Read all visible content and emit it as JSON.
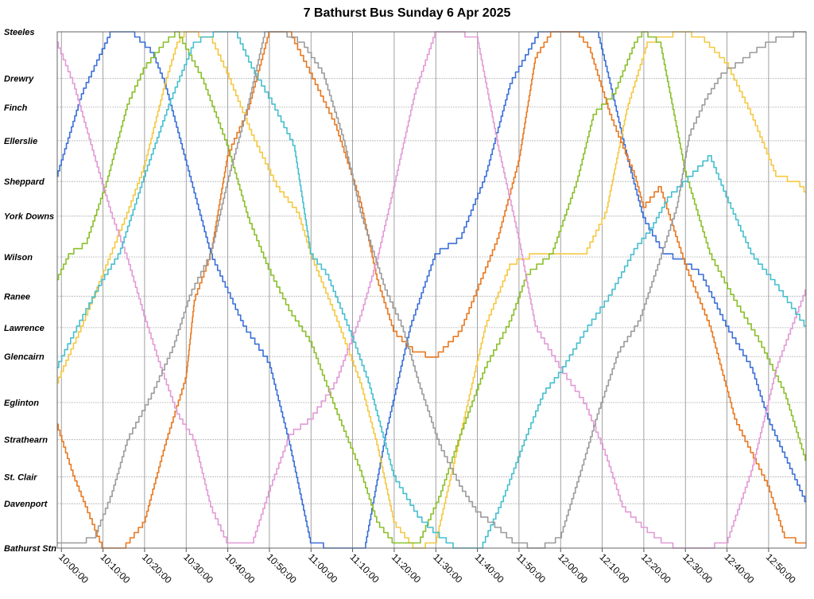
{
  "chart_data": {
    "type": "line",
    "title": "7 Bathurst Bus Sunday 6 Apr 2025",
    "xlabel": "",
    "ylabel": "",
    "x_ticks": [
      "10:00:00",
      "10:10:00",
      "10:20:00",
      "10:30:00",
      "10:40:00",
      "10:50:00",
      "11:00:00",
      "11:10:00",
      "11:20:00",
      "11:30:00",
      "11:40:00",
      "11:50:00",
      "12:00:00",
      "12:10:00",
      "12:20:00",
      "12:30:00",
      "12:40:00",
      "12:50:00"
    ],
    "xlim": [
      "09:59:00",
      "12:59:00"
    ],
    "stops": [
      {
        "name": "Steeles",
        "pos": 0
      },
      {
        "name": "Drewry",
        "pos": 9
      },
      {
        "name": "Finch",
        "pos": 14.6
      },
      {
        "name": "Ellerslie",
        "pos": 21.1
      },
      {
        "name": "Sheppard",
        "pos": 29
      },
      {
        "name": "York Downs",
        "pos": 35.7
      },
      {
        "name": "Wilson",
        "pos": 43.6
      },
      {
        "name": "Ranee",
        "pos": 51.2
      },
      {
        "name": "Lawrence",
        "pos": 57.3
      },
      {
        "name": "Glencairn",
        "pos": 62.9
      },
      {
        "name": "Eglinton",
        "pos": 71.8
      },
      {
        "name": "Strathearn",
        "pos": 79
      },
      {
        "name": "St. Clair",
        "pos": 86.2
      },
      {
        "name": "Davenport",
        "pos": 91.4
      },
      {
        "name": "Bathurst Stn",
        "pos": 100
      }
    ],
    "ylim": [
      100,
      0
    ],
    "grid": true,
    "legend": "none",
    "series": [
      {
        "color": "#3a6fd8",
        "x": [
          "09:59",
          "10:05",
          "10:12",
          "10:17",
          "10:22",
          "10:25",
          "10:31",
          "10:36",
          "10:44",
          "10:50",
          "10:55",
          "11:00",
          "11:06",
          "11:13",
          "11:18",
          "11:24",
          "11:30",
          "11:36",
          "11:42",
          "11:48",
          "11:55",
          "12:00",
          "12:02",
          "12:06",
          "12:09",
          "12:12",
          "12:16",
          "12:20",
          "12:25",
          "12:29",
          "12:34",
          "12:40",
          "12:46",
          "12:50",
          "12:59"
        ],
        "y": [
          28,
          12,
          0,
          0,
          4,
          10,
          28,
          43,
          57,
          64,
          80,
          99,
          100,
          100,
          78,
          57,
          43,
          40,
          28,
          10,
          0,
          0,
          0,
          0,
          0,
          10,
          24,
          36,
          43,
          44,
          47,
          57,
          65,
          75,
          91
        ]
      },
      {
        "color": "#f5c842",
        "x": [
          "09:59",
          "10:05",
          "10:12",
          "10:16",
          "10:20",
          "10:25",
          "10:28",
          "10:30",
          "10:36",
          "10:40",
          "10:46",
          "10:52",
          "10:57",
          "11:00",
          "11:06",
          "11:12",
          "11:16",
          "11:20",
          "11:25",
          "11:30",
          "11:36",
          "11:42",
          "11:48",
          "11:54",
          "12:00",
          "12:06",
          "12:11",
          "12:16",
          "12:21",
          "12:29",
          "12:34",
          "12:40",
          "12:46",
          "12:52",
          "12:57",
          "12:59"
        ],
        "y": [
          68,
          57,
          43,
          35,
          26,
          10,
          2,
          0,
          1,
          8,
          20,
          30,
          35,
          43,
          55,
          68,
          80,
          95,
          100,
          99,
          78,
          57,
          45,
          43,
          43,
          43,
          35,
          15,
          2,
          0,
          1,
          6,
          16,
          28,
          29,
          31
        ]
      },
      {
        "color": "#8abf2a",
        "x": [
          "09:59",
          "10:02",
          "10:06",
          "10:11",
          "10:16",
          "10:20",
          "10:25",
          "10:28",
          "10:34",
          "10:40",
          "10:45",
          "10:50",
          "10:55",
          "11:00",
          "11:06",
          "11:12",
          "11:16",
          "11:20",
          "11:26",
          "11:31",
          "11:36",
          "11:42",
          "11:48",
          "11:52",
          "11:58",
          "12:04",
          "12:08",
          "12:13",
          "12:18",
          "12:20",
          "12:24",
          "12:30",
          "12:36",
          "12:42",
          "12:48",
          "12:54",
          "12:59"
        ],
        "y": [
          48,
          43,
          41,
          29,
          14,
          7,
          2,
          0,
          9,
          22,
          36,
          46,
          54,
          60,
          73,
          85,
          95,
          99,
          99,
          90,
          78,
          65,
          56,
          47,
          43,
          29,
          16,
          12,
          2,
          0,
          2,
          27,
          43,
          52,
          60,
          70,
          83
        ]
      },
      {
        "color": "#e87820",
        "x": [
          "09:59",
          "10:03",
          "10:06",
          "10:10",
          "10:15",
          "10:20",
          "10:25",
          "10:30",
          "10:32",
          "10:36",
          "10:40",
          "10:45",
          "10:50",
          "10:55",
          "11:00",
          "11:06",
          "11:12",
          "11:16",
          "11:20",
          "11:25",
          "11:30",
          "11:36",
          "11:40",
          "11:45",
          "11:50",
          "11:54",
          "11:58",
          "12:04",
          "12:07",
          "12:12",
          "12:18",
          "12:20",
          "12:24",
          "12:30",
          "12:36",
          "12:42",
          "12:50",
          "12:54",
          "12:59"
        ],
        "y": [
          76,
          86,
          92,
          100,
          100,
          95,
          80,
          67,
          52,
          43,
          24,
          15,
          0,
          0,
          8,
          18,
          33,
          48,
          58,
          62,
          63,
          58,
          50,
          40,
          25,
          5,
          0,
          0,
          3,
          16,
          28,
          34,
          30,
          45,
          57,
          75,
          88,
          98,
          99
        ]
      },
      {
        "color": "#e29ad6",
        "x": [
          "09:59",
          "10:03",
          "10:08",
          "10:12",
          "10:16",
          "10:20",
          "10:24",
          "10:28",
          "10:32",
          "10:36",
          "10:40",
          "10:46",
          "10:50",
          "10:55",
          "11:00",
          "11:06",
          "11:12",
          "11:16",
          "11:20",
          "11:25",
          "11:30",
          "11:34",
          "11:40",
          "11:45",
          "11:50",
          "11:54",
          "12:00",
          "12:06",
          "12:11",
          "12:15",
          "12:20",
          "12:25",
          "12:29",
          "12:34",
          "12:40",
          "12:46",
          "12:52",
          "12:59"
        ],
        "y": [
          2,
          10,
          24,
          35,
          44,
          55,
          65,
          74,
          79,
          92,
          99,
          99,
          89,
          78,
          75,
          68,
          55,
          44,
          30,
          12,
          0,
          0,
          1,
          22,
          40,
          57,
          65,
          72,
          82,
          92,
          96,
          99,
          100,
          100,
          99,
          85,
          65,
          50
        ]
      },
      {
        "color": "#45bfcf",
        "x": [
          "09:59",
          "10:04",
          "10:10",
          "10:14",
          "10:20",
          "10:26",
          "10:32",
          "10:38",
          "10:42",
          "10:46",
          "10:51",
          "10:56",
          "11:00",
          "11:04",
          "11:10",
          "11:14",
          "11:20",
          "11:26",
          "11:30",
          "11:35",
          "11:41",
          "11:46",
          "11:52",
          "11:56",
          "12:00",
          "12:06",
          "12:12",
          "12:18",
          "12:22",
          "12:26",
          "12:30",
          "12:36",
          "12:40",
          "12:46",
          "12:52",
          "12:59"
        ],
        "y": [
          65,
          57,
          48,
          43,
          28,
          14,
          2,
          0,
          0,
          7,
          14,
          22,
          43,
          47,
          59,
          68,
          86,
          94,
          97,
          100,
          100,
          91,
          78,
          70,
          66,
          58,
          51,
          42,
          38,
          32,
          29,
          24,
          32,
          43,
          49,
          57
        ]
      },
      {
        "color": "#9b9b9b",
        "x": [
          "09:59",
          "10:04",
          "10:08",
          "10:12",
          "10:16",
          "10:22",
          "10:27",
          "10:31",
          "10:36",
          "10:40",
          "10:45",
          "10:49",
          "10:53",
          "10:58",
          "11:03",
          "11:08",
          "11:12",
          "11:18",
          "11:22",
          "11:26",
          "11:31",
          "11:36",
          "11:40",
          "11:45",
          "11:49",
          "11:55",
          "12:00",
          "12:05",
          "12:09",
          "12:14",
          "12:19",
          "12:24",
          "12:28",
          "12:31",
          "12:35",
          "12:39",
          "12:43",
          "12:48",
          "12:53",
          "12:59"
        ],
        "y": [
          99,
          99,
          98,
          90,
          79,
          70,
          61,
          51,
          43,
          29,
          14,
          0,
          0,
          2,
          8,
          21,
          35,
          50,
          57,
          68,
          80,
          88,
          93,
          96,
          99,
          100,
          98,
          85,
          74,
          62,
          56,
          44,
          34,
          20,
          13,
          8,
          6,
          3,
          1,
          0
        ]
      }
    ]
  }
}
